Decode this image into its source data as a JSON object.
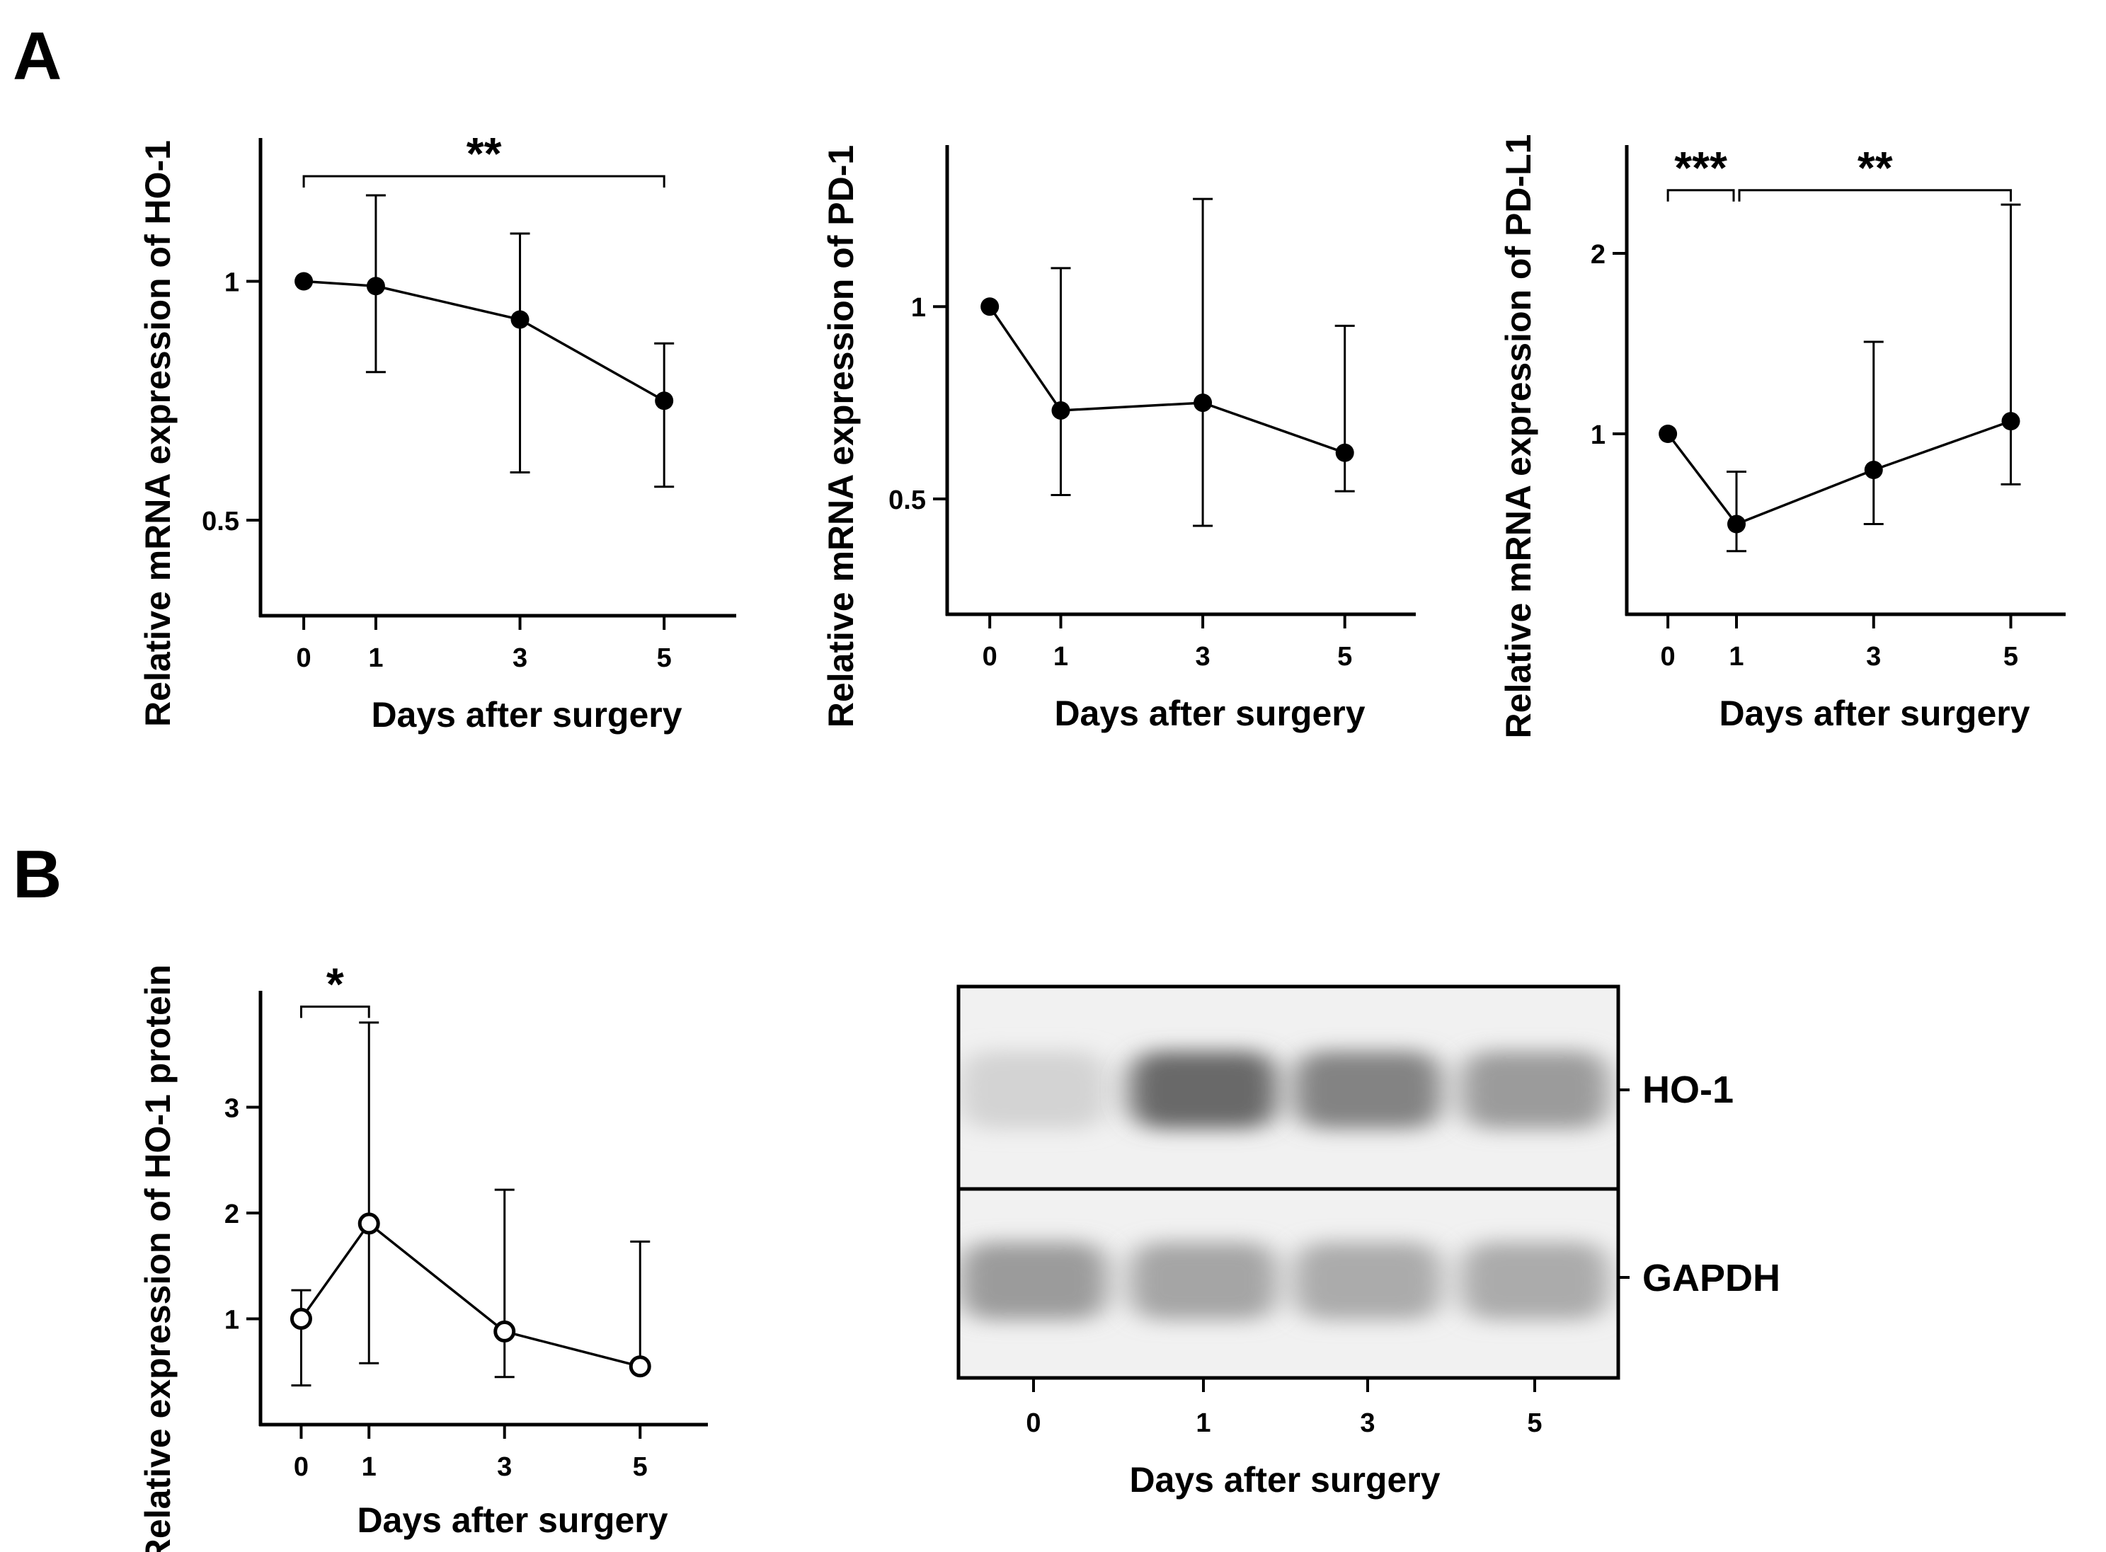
{
  "panel_labels": {
    "a": "A",
    "b": "B"
  },
  "chart_data": [
    {
      "id": "c1",
      "type": "line",
      "marker": "filled",
      "xlabel": "Days after surgery",
      "ylabel": "Relative mRNA expression of HO-1",
      "x": [
        0,
        1,
        3,
        5
      ],
      "xticks": [
        "0",
        "1",
        "3",
        "5"
      ],
      "xlim": [
        -0.6,
        6.0
      ],
      "ylim": [
        0.3,
        1.3
      ],
      "yticks": [
        {
          "v": 0.5,
          "label": "0.5"
        },
        {
          "v": 1,
          "label": "1"
        }
      ],
      "series": [
        {
          "name": "HO-1 mRNA",
          "values": [
            1.0,
            0.99,
            0.92,
            0.75
          ],
          "err_low": [
            1.0,
            0.81,
            0.6,
            0.57
          ],
          "err_high": [
            1.0,
            1.18,
            1.1,
            0.87
          ]
        }
      ],
      "significance": [
        {
          "from": 0,
          "to": 5,
          "label": "**",
          "y": 1.22
        }
      ]
    },
    {
      "id": "c2",
      "type": "line",
      "marker": "filled",
      "xlabel": "Days after surgery",
      "ylabel": "Relative mRNA expression of PD-1",
      "x": [
        0,
        1,
        3,
        5
      ],
      "xticks": [
        "0",
        "1",
        "3",
        "5"
      ],
      "xlim": [
        -0.6,
        6.0
      ],
      "ylim": [
        0.2,
        1.42
      ],
      "yticks": [
        {
          "v": 0.5,
          "label": "0.5"
        },
        {
          "v": 1,
          "label": "1"
        }
      ],
      "series": [
        {
          "name": "PD-1 mRNA",
          "values": [
            1.0,
            0.73,
            0.75,
            0.62
          ],
          "err_low": [
            1.0,
            0.51,
            0.43,
            0.52
          ],
          "err_high": [
            1.0,
            1.1,
            1.28,
            0.95
          ]
        }
      ],
      "significance": []
    },
    {
      "id": "c3",
      "type": "line",
      "marker": "filled",
      "xlabel": "Days after surgery",
      "ylabel": "Relative mRNA expression of PD-L1",
      "x": [
        0,
        1,
        3,
        5
      ],
      "xticks": [
        "0",
        "1",
        "3",
        "5"
      ],
      "xlim": [
        -0.6,
        5.8
      ],
      "ylim": [
        0.0,
        2.6
      ],
      "yticks": [
        {
          "v": 1,
          "label": "1"
        },
        {
          "v": 2,
          "label": "2"
        }
      ],
      "series": [
        {
          "name": "PD-L1 mRNA",
          "values": [
            1.0,
            0.5,
            0.8,
            1.07
          ],
          "err_low": [
            1.0,
            0.35,
            0.5,
            0.72
          ],
          "err_high": [
            1.0,
            0.79,
            1.51,
            2.27
          ]
        }
      ],
      "significance": [
        {
          "from": 0,
          "to": 1,
          "label": "***",
          "y": 2.35
        },
        {
          "from": 1,
          "to": 5,
          "label": "**",
          "y": 2.35
        }
      ]
    },
    {
      "id": "c4",
      "type": "line",
      "marker": "open",
      "xlabel": "Days after surgery",
      "ylabel": "Relative expression of HO-1 protein",
      "x": [
        0,
        1,
        3,
        5
      ],
      "xticks": [
        "0",
        "1",
        "3",
        "5"
      ],
      "xlim": [
        -0.6,
        6.0
      ],
      "ylim": [
        0.0,
        4.1
      ],
      "yticks": [
        {
          "v": 1,
          "label": "1"
        },
        {
          "v": 2,
          "label": "2"
        },
        {
          "v": 3,
          "label": "3"
        }
      ],
      "series": [
        {
          "name": "HO-1 protein",
          "values": [
            1.0,
            1.9,
            0.88,
            0.55
          ],
          "err_low": [
            0.37,
            0.58,
            0.45,
            0.55
          ],
          "err_high": [
            1.27,
            3.8,
            2.22,
            1.73
          ]
        }
      ],
      "significance": [
        {
          "from": 0,
          "to": 1,
          "label": "*",
          "y": 3.95
        }
      ]
    }
  ],
  "blot": {
    "bands": [
      {
        "label": "HO-1",
        "intensities": [
          0.22,
          0.75,
          0.62,
          0.5
        ]
      },
      {
        "label": "GAPDH",
        "intensities": [
          0.5,
          0.45,
          0.42,
          0.42
        ]
      }
    ],
    "lanes": [
      "0",
      "1",
      "3",
      "5"
    ],
    "xlabel": "Days after surgery"
  }
}
